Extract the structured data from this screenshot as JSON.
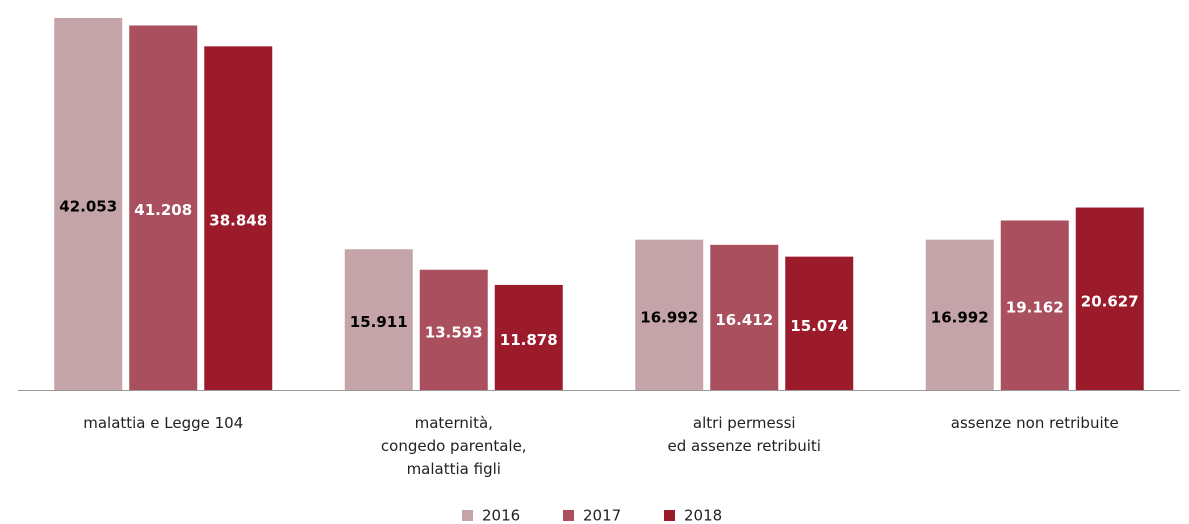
{
  "chart_data": {
    "type": "bar",
    "categories": [
      "malattia e Legge 104",
      "maternità,\ncongedo parentale,\nmalattia figli",
      "altri permessi\ned assenze retribuiti",
      "assenze non retribuite"
    ],
    "series": [
      {
        "name": "2016",
        "color": "#c4a4a8",
        "label_color": "#000000",
        "values": [
          42053,
          15911,
          16992,
          16992
        ],
        "value_labels": [
          "42.053",
          "15.911",
          "16.992",
          "16.992"
        ]
      },
      {
        "name": "2017",
        "color": "#a94f5e",
        "label_color": "#ffffff",
        "values": [
          41208,
          13593,
          16412,
          19162
        ],
        "value_labels": [
          "41.208",
          "13.593",
          "16.412",
          "19.162"
        ]
      },
      {
        "name": "2018",
        "color": "#9b1b2b",
        "label_color": "#ffffff",
        "values": [
          38848,
          11878,
          15074,
          20627
        ],
        "value_labels": [
          "38.848",
          "11.878",
          "15.074",
          "20.627"
        ]
      }
    ],
    "legend": "bottom"
  }
}
